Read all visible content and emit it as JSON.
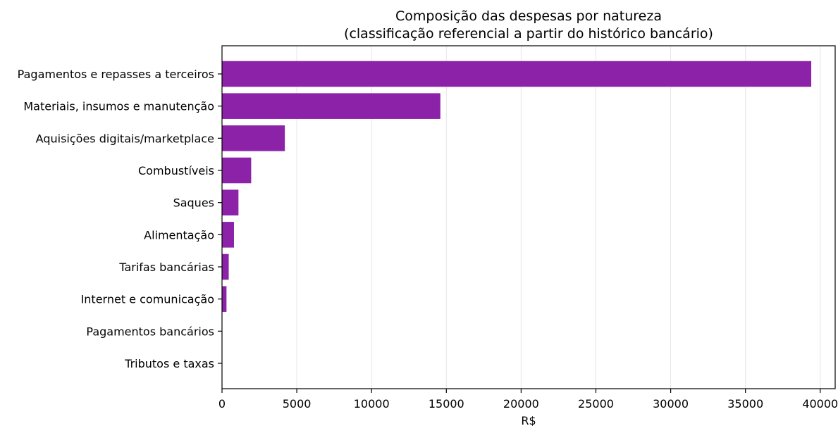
{
  "chart_data": {
    "type": "bar",
    "orientation": "horizontal",
    "title": "Composição das despesas por natureza",
    "subtitle": "(classificação referencial a partir do histórico bancário)",
    "xlabel": "R$",
    "ylabel": "",
    "xlim": [
      0,
      41000
    ],
    "xticks": [
      0,
      5000,
      10000,
      15000,
      20000,
      25000,
      30000,
      35000,
      40000
    ],
    "xtick_labels": [
      "0",
      "5000",
      "10000",
      "15000",
      "20000",
      "25000",
      "30000",
      "35000",
      "40000"
    ],
    "grid": "x",
    "bar_color": "#8b22a8",
    "categories": [
      "Pagamentos e repasses a terceiros",
      "Materiais, insumos e manutenção",
      "Aquisições digitais/marketplace",
      "Combustíveis",
      "Saques",
      "Alimentação",
      "Tarifas bancárias",
      "Internet e comunicação",
      "Pagamentos bancários",
      "Tributos e taxas"
    ],
    "values": [
      39400,
      14600,
      4200,
      1950,
      1100,
      800,
      450,
      300,
      0,
      0
    ]
  }
}
